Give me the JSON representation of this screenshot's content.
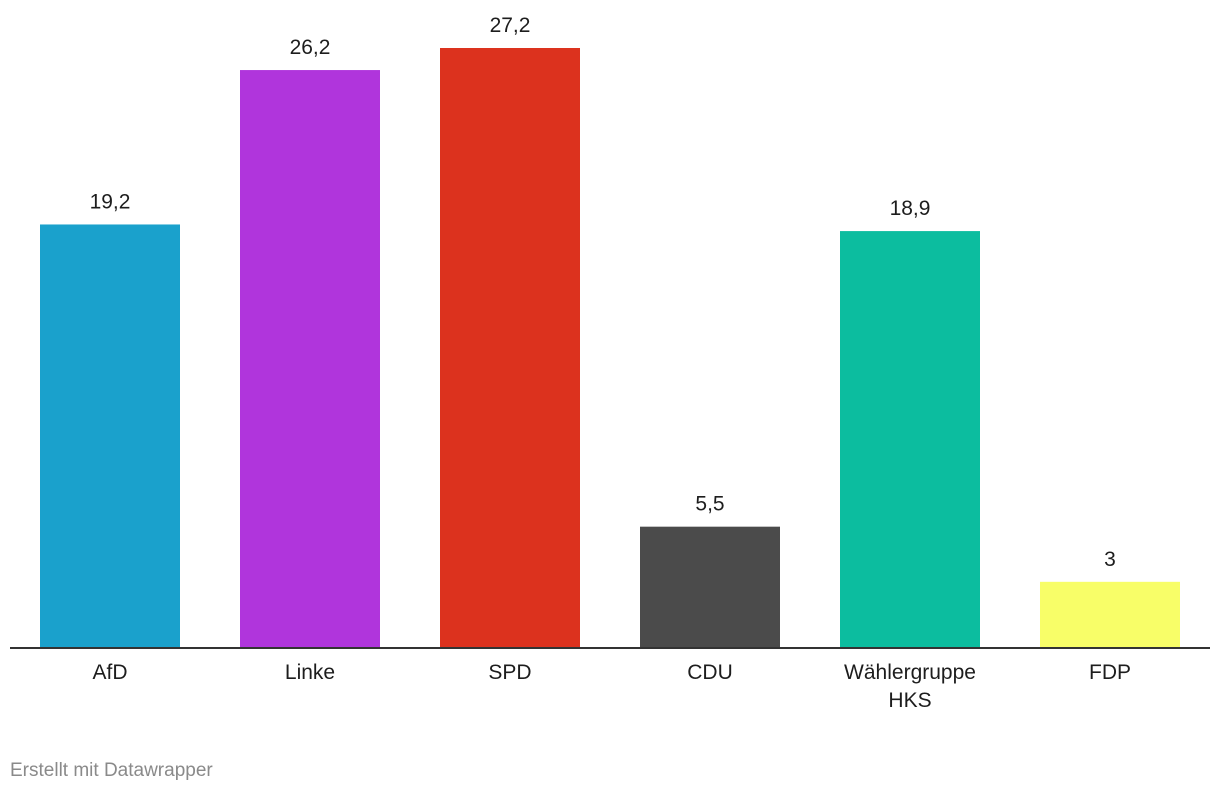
{
  "chart_data": {
    "type": "bar",
    "categories": [
      "AfD",
      "Linke",
      "SPD",
      "CDU",
      "Wählergruppe HKS",
      "FDP"
    ],
    "category_lines": [
      [
        "AfD"
      ],
      [
        "Linke"
      ],
      [
        "SPD"
      ],
      [
        "CDU"
      ],
      [
        "Wählergruppe",
        "HKS"
      ],
      [
        "FDP"
      ]
    ],
    "values": [
      19.2,
      26.2,
      27.2,
      5.5,
      18.9,
      3
    ],
    "value_labels": [
      "19,2",
      "26,2",
      "27,2",
      "5,5",
      "18,9",
      "3"
    ],
    "colors": [
      "#1aa1cc",
      "#b035dc",
      "#dc321e",
      "#4b4b4b",
      "#0cbd9f",
      "#f8fe68"
    ],
    "ylim": [
      0,
      27.2
    ],
    "grid": false,
    "legend": "none",
    "baseline_color": "#333333",
    "title": "",
    "xlabel": "",
    "ylabel": ""
  },
  "footer": {
    "credit": "Erstellt mit Datawrapper"
  }
}
